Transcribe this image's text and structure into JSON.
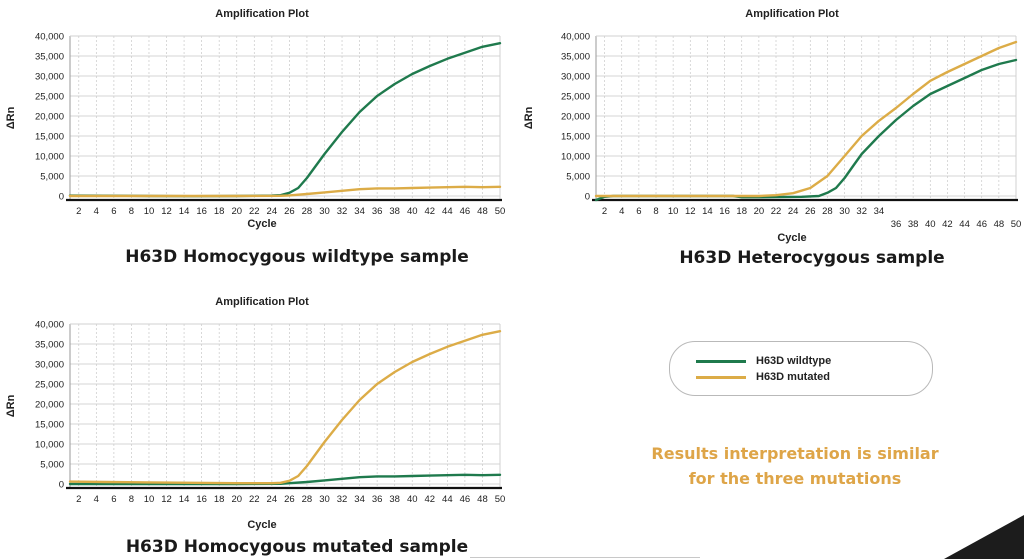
{
  "colors": {
    "wildtype": "#1f7a4d",
    "mutated": "#dcac47",
    "note": "#dea548",
    "grid": "#c9c9c9"
  },
  "legend": {
    "items": [
      {
        "label": "H63D wildtype",
        "color": "#1f7a4d"
      },
      {
        "label": "H63D mutated",
        "color": "#dcac47"
      }
    ]
  },
  "note": {
    "line1": "Results interpretation is similar",
    "line2": "for the three mutations"
  },
  "chart_data": [
    {
      "type": "line",
      "title": "Amplification Plot",
      "caption": "H63D Homocygous wildtype sample",
      "xlabel": "Cycle",
      "ylabel": "ΔRn",
      "xlim": [
        1,
        50
      ],
      "ylim": [
        -1500,
        40000
      ],
      "x_ticks": [
        2,
        4,
        6,
        8,
        10,
        12,
        14,
        16,
        18,
        20,
        22,
        24,
        26,
        28,
        30,
        32,
        34,
        36,
        38,
        40,
        42,
        44,
        46,
        48,
        50
      ],
      "y_ticks": [
        "0",
        "5,000",
        "10,000",
        "15,000",
        "20,000",
        "25,000",
        "30,000",
        "35,000",
        "40,000"
      ],
      "grid": true,
      "series": [
        {
          "color": "wildtype",
          "x": [
            1,
            5,
            10,
            15,
            20,
            24,
            25,
            26,
            27,
            28,
            29,
            30,
            32,
            34,
            36,
            38,
            40,
            42,
            44,
            46,
            48,
            50
          ],
          "y": [
            100,
            80,
            0,
            -50,
            0,
            100,
            200,
            800,
            2000,
            4500,
            7500,
            10500,
            16000,
            21000,
            25000,
            28000,
            30500,
            32500,
            34300,
            35800,
            37300,
            38200
          ]
        },
        {
          "color": "mutated",
          "x": [
            1,
            10,
            20,
            25,
            26,
            28,
            30,
            32,
            34,
            36,
            38,
            40,
            42,
            44,
            46,
            48,
            50
          ],
          "y": [
            0,
            0,
            0,
            50,
            150,
            500,
            900,
            1300,
            1700,
            1900,
            1900,
            2000,
            2100,
            2200,
            2300,
            2200,
            2300
          ]
        }
      ]
    },
    {
      "type": "line",
      "title": "Amplification Plot",
      "caption": "H63D Heterocygous sample",
      "xlabel": "Cycle",
      "ylabel": "ΔRn",
      "xlim": [
        1,
        50
      ],
      "ylim": [
        -1500,
        40000
      ],
      "x_ticks": [
        2,
        4,
        6,
        8,
        10,
        12,
        14,
        16,
        18,
        20,
        22,
        24,
        26,
        28,
        30,
        32,
        34
      ],
      "x_ticks_low": [
        36,
        38,
        40,
        42,
        44,
        46,
        48,
        50
      ],
      "y_ticks": [
        "0",
        "5,000",
        "10,000",
        "15,000",
        "20,000",
        "25,000",
        "30,000",
        "35,000",
        "40,000"
      ],
      "grid": true,
      "series": [
        {
          "color": "wildtype",
          "x": [
            1,
            2,
            3,
            5,
            10,
            15,
            17,
            18,
            20,
            25,
            27,
            28,
            29,
            30,
            31,
            32,
            34,
            36,
            38,
            40,
            42,
            44,
            46,
            48,
            50
          ],
          "y": [
            -1000,
            -200,
            0,
            0,
            0,
            0,
            0,
            -300,
            -300,
            -200,
            0,
            800,
            2000,
            4500,
            7500,
            10500,
            15000,
            19000,
            22500,
            25500,
            27500,
            29500,
            31500,
            33000,
            34000
          ]
        },
        {
          "color": "mutated",
          "x": [
            1,
            10,
            20,
            22,
            24,
            26,
            28,
            30,
            32,
            34,
            36,
            38,
            40,
            42,
            44,
            46,
            48,
            50
          ],
          "y": [
            0,
            0,
            0,
            200,
            700,
            2000,
            5000,
            10000,
            15000,
            18800,
            22000,
            25500,
            28800,
            31000,
            33000,
            35000,
            37000,
            38500
          ]
        }
      ]
    },
    {
      "type": "line",
      "title": "Amplification Plot",
      "caption": "H63D Homocygous mutated sample",
      "xlabel": "Cycle",
      "ylabel": "ΔRn",
      "xlim": [
        1,
        50
      ],
      "ylim": [
        -1500,
        40000
      ],
      "x_ticks": [
        2,
        4,
        6,
        8,
        10,
        12,
        14,
        16,
        18,
        20,
        22,
        24,
        26,
        28,
        30,
        32,
        34,
        36,
        38,
        40,
        42,
        44,
        46,
        48,
        50
      ],
      "y_ticks": [
        "0",
        "5,000",
        "10,000",
        "15,000",
        "20,000",
        "25,000",
        "30,000",
        "35,000",
        "40,000"
      ],
      "grid": true,
      "series": [
        {
          "color": "wildtype",
          "x": [
            1,
            10,
            20,
            25,
            26,
            28,
            30,
            32,
            34,
            36,
            38,
            40,
            42,
            44,
            46,
            48,
            50
          ],
          "y": [
            0,
            0,
            0,
            50,
            200,
            500,
            900,
            1300,
            1700,
            1900,
            1900,
            2000,
            2100,
            2200,
            2300,
            2200,
            2300
          ]
        },
        {
          "color": "mutated",
          "x": [
            1,
            5,
            10,
            15,
            20,
            24,
            25,
            26,
            27,
            28,
            29,
            30,
            32,
            34,
            36,
            38,
            40,
            42,
            44,
            46,
            48,
            50
          ],
          "y": [
            600,
            500,
            400,
            300,
            200,
            200,
            300,
            800,
            2000,
            4500,
            7500,
            10500,
            16000,
            21000,
            25000,
            28000,
            30500,
            32500,
            34300,
            35800,
            37300,
            38200
          ]
        }
      ]
    }
  ]
}
